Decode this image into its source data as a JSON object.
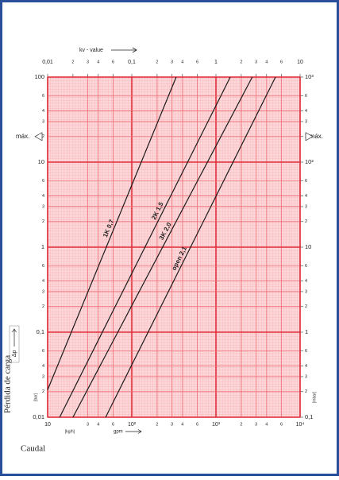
{
  "chart_data": {
    "type": "line",
    "log_scale": true,
    "grid": true,
    "top_axis_label": "kv - value",
    "x_label": "Caudal",
    "y_label": "Pérdida de carga",
    "dp_label": "Δp",
    "max_left": "máx.",
    "max_right": "máx.",
    "max": 20,
    "left_unit": "[bar]",
    "right_unit": "[mbar]",
    "bottom_unit": "[kg/h]",
    "gpm_label": "gpm",
    "xlim": [
      10,
      10000
    ],
    "xticks": [
      10,
      {
        "value": 30,
        "label": "3"
      },
      {
        "value": 40,
        "label": "4"
      },
      {
        "value": 60,
        "label": "6"
      },
      {
        "value": 100,
        "label": "10²"
      },
      {
        "value": 200,
        "label": "2"
      },
      {
        "value": 300,
        "label": "3"
      },
      {
        "value": 400,
        "label": "4"
      },
      {
        "value": 600,
        "label": "6"
      },
      {
        "value": 1000,
        "label": "10³"
      },
      {
        "value": 2000,
        "label": "2"
      },
      {
        "value": 3000,
        "label": "3"
      },
      {
        "value": 4000,
        "label": "4"
      },
      {
        "value": 6000,
        "label": "6"
      },
      {
        "value": 10000,
        "label": "10⁴"
      }
    ],
    "x2lim": [
      0.01,
      10
    ],
    "x2ticks": [
      {
        "value": 0.01,
        "label": "0,01"
      },
      {
        "value": 0.02,
        "label": "2"
      },
      {
        "value": 0.03,
        "label": "3"
      },
      {
        "value": 0.04,
        "label": "4"
      },
      {
        "value": 0.06,
        "label": "6"
      },
      {
        "value": 0.1,
        "label": "0,1"
      },
      {
        "value": 0.2,
        "label": "2"
      },
      {
        "value": 0.3,
        "label": "3"
      },
      {
        "value": 0.4,
        "label": "4"
      },
      {
        "value": 0.6,
        "label": "6"
      },
      1,
      2,
      3,
      4,
      6,
      10
    ],
    "ylim": [
      0.01,
      100
    ],
    "yticks": [
      100,
      {
        "value": 60,
        "label": "6"
      },
      {
        "value": 40,
        "label": "4"
      },
      {
        "value": 30,
        "label": "3"
      },
      {
        "value": 20,
        "label": "2"
      },
      10,
      6,
      4,
      3,
      2,
      1,
      {
        "value": 0.6,
        "label": "6"
      },
      {
        "value": 0.4,
        "label": "4"
      },
      {
        "value": 0.3,
        "label": "3"
      },
      {
        "value": 0.2,
        "label": "2"
      },
      {
        "value": 0.1,
        "label": "0,1"
      },
      {
        "value": 0.06,
        "label": "6"
      },
      {
        "value": 0.04,
        "label": "4"
      },
      {
        "value": 0.03,
        "label": "3"
      },
      {
        "value": 0.02,
        "label": "2"
      },
      {
        "value": 0.01,
        "label": "0,01"
      }
    ],
    "y2lim": [
      0.1,
      1000
    ],
    "y2ticks": [
      {
        "value": 1000,
        "label": "10³"
      },
      {
        "value": 600,
        "label": "6"
      },
      {
        "value": 400,
        "label": "4"
      },
      {
        "value": 300,
        "label": "3"
      },
      {
        "value": 200,
        "label": "2"
      },
      {
        "value": 100,
        "label": "10²"
      },
      {
        "value": 60,
        "label": "6"
      },
      {
        "value": 40,
        "label": "4"
      },
      {
        "value": 30,
        "label": "3"
      },
      {
        "value": 20,
        "label": "2"
      },
      10,
      6,
      4,
      3,
      2,
      1,
      {
        "value": 0.6,
        "label": "6"
      },
      {
        "value": 0.4,
        "label": "4"
      },
      {
        "value": 0.3,
        "label": "3"
      },
      {
        "value": 0.2,
        "label": "2"
      },
      {
        "value": 0.1,
        "label": "0,1"
      }
    ],
    "series": [
      {
        "name": "1K 0,7",
        "color": "#1a1a1a",
        "x": [
          10,
          337
        ],
        "values": [
          0.021,
          100
        ]
      },
      {
        "name": "2K 1,5",
        "color": "#1a1a1a",
        "x": [
          13.9,
          1480
        ],
        "values": [
          0.01,
          100
        ]
      },
      {
        "name": "3K 2,0",
        "color": "#1a1a1a",
        "x": [
          20,
          2700
        ],
        "values": [
          0.01,
          100
        ]
      },
      {
        "name": "open 2,1",
        "color": "#1a1a1a",
        "x": [
          48.9,
          5100
        ],
        "values": [
          0.01,
          100
        ]
      }
    ]
  }
}
